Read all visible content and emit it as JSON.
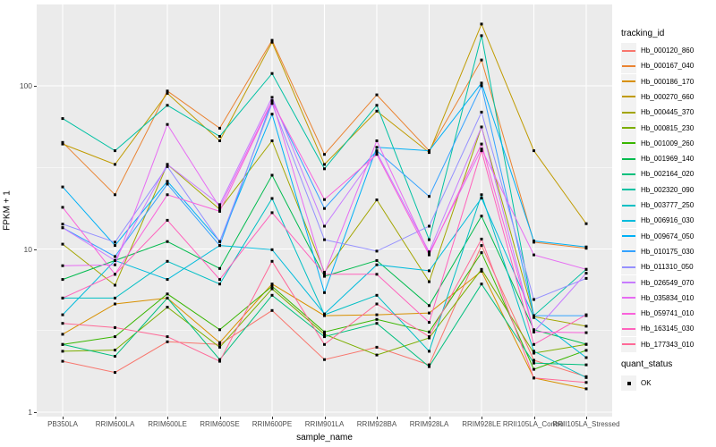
{
  "chart_data": {
    "type": "line",
    "title": "",
    "xlabel": "sample_name",
    "ylabel": "FPKM + 1",
    "y_scale": "log10",
    "ylim": [
      1,
      300
    ],
    "y_ticks": [
      1,
      10,
      100
    ],
    "grid": true,
    "panel_bg": "#EBEBEB",
    "grid_color": "#FFFFFF",
    "point_shape": "filled-square",
    "point_color": "#000000",
    "legend_position": "right",
    "legend_title": "tracking_id",
    "point_legend": {
      "title": "quant_status",
      "label": "OK"
    },
    "categories": [
      "PB350LA",
      "RRIM600LA",
      "RRIM600LE",
      "RRIM600SE",
      "RRIM600PE",
      "RRIM901LA",
      "RRIM928BA",
      "RRIM928LA",
      "RRIM928LE",
      "RRII105LA_Control",
      "RRII105LA_Stressed"
    ],
    "series": [
      {
        "name": "Hb_000120_860",
        "color": "#F8766D",
        "values": [
          2.05,
          1.75,
          2.7,
          2.6,
          4.2,
          2.1,
          2.5,
          1.95,
          10.5,
          2.08,
          1.65
        ]
      },
      {
        "name": "Hb_000167_040",
        "color": "#EA8331",
        "values": [
          45,
          21.5,
          93,
          55,
          190,
          38,
          88,
          40,
          144,
          11.0,
          10.1
        ]
      },
      {
        "name": "Hb_000186_170",
        "color": "#D89000",
        "values": [
          3.0,
          4.6,
          5.0,
          2.67,
          6.1,
          3.9,
          3.95,
          4.05,
          7.3,
          1.62,
          1.39
        ]
      },
      {
        "name": "Hb_000270_660",
        "color": "#C09B00",
        "values": [
          44,
          33,
          90,
          46,
          185,
          33,
          70,
          39,
          239,
          40,
          14.3
        ]
      },
      {
        "name": "Hb_000445_370",
        "color": "#A3A500",
        "values": [
          10.7,
          6.0,
          33,
          17.5,
          46,
          7.2,
          20,
          6.3,
          56,
          3.85,
          3.36
        ]
      },
      {
        "name": "Hb_000815_230",
        "color": "#7CAE00",
        "values": [
          2.36,
          2.4,
          4.4,
          2.5,
          5.7,
          3.0,
          2.24,
          2.85,
          7.5,
          2.3,
          2.6
        ]
      },
      {
        "name": "Hb_001009_260",
        "color": "#39B600",
        "values": [
          2.6,
          2.9,
          5.3,
          3.2,
          5.9,
          3.1,
          3.7,
          3.1,
          9.5,
          1.83,
          2.39
        ]
      },
      {
        "name": "Hb_001969_140",
        "color": "#00BB4E",
        "values": [
          6.5,
          8.5,
          11.1,
          7.6,
          28.3,
          6.8,
          8.5,
          4.5,
          15.9,
          3.2,
          2.61
        ]
      },
      {
        "name": "Hb_002164_020",
        "color": "#00BF7D",
        "values": [
          2.6,
          2.2,
          5.0,
          2.1,
          5.2,
          2.9,
          3.5,
          1.9,
          6.1,
          2.0,
          1.95
        ]
      },
      {
        "name": "Hb_002320_090",
        "color": "#00C1A3",
        "values": [
          63,
          40,
          76,
          49,
          119,
          31,
          76,
          11.4,
          203,
          3.9,
          7.5
        ]
      },
      {
        "name": "Hb_003777_250",
        "color": "#00BFC4",
        "values": [
          5.0,
          5.0,
          8.4,
          6.1,
          20.4,
          3.95,
          5.2,
          2.36,
          21.5,
          2.36,
          1.63
        ]
      },
      {
        "name": "Hb_006916_030",
        "color": "#00BBDC",
        "values": [
          3.95,
          8.5,
          6.5,
          10.5,
          9.9,
          4.0,
          8.0,
          7.35,
          20.5,
          3.8,
          2.16
        ]
      },
      {
        "name": "Hb_009674_050",
        "color": "#00B0F6",
        "values": [
          24,
          10.5,
          26,
          11.1,
          67,
          5.4,
          42,
          40,
          104,
          11.2,
          10.3
        ]
      },
      {
        "name": "Hb_010175_030",
        "color": "#35A2FF",
        "values": [
          13.5,
          9.0,
          25,
          10.5,
          81,
          17.7,
          40,
          21,
          100,
          3.9,
          3.9
        ]
      },
      {
        "name": "Hb_011310_050",
        "color": "#9590FF",
        "values": [
          14.2,
          11.0,
          32,
          11.1,
          78,
          11.4,
          9.7,
          13.8,
          69,
          4.9,
          6.6
        ]
      },
      {
        "name": "Hb_026549_070",
        "color": "#C77CFF",
        "values": [
          13.5,
          8.5,
          33,
          18.7,
          85,
          13.8,
          39,
          9.6,
          56,
          3.1,
          7.1
        ]
      },
      {
        "name": "Hb_035834_010",
        "color": "#E76BF3",
        "values": [
          7.9,
          8.0,
          58,
          18,
          81,
          7.0,
          46,
          9.4,
          41,
          9.2,
          7.5
        ]
      },
      {
        "name": "Hb_059741_010",
        "color": "#FA62DB",
        "values": [
          18,
          7.0,
          21.5,
          17,
          80,
          20.1,
          38,
          9.2,
          44,
          3.1,
          3.07
        ]
      },
      {
        "name": "Hb_163145_030",
        "color": "#FF62BC",
        "values": [
          5.0,
          7.0,
          15,
          6.5,
          16.7,
          7.0,
          7.0,
          3.55,
          40,
          2.6,
          3.95
        ]
      },
      {
        "name": "Hb_177343_010",
        "color": "#FF6A98",
        "values": [
          3.5,
          3.3,
          2.9,
          2.05,
          8.4,
          2.6,
          4.6,
          2.9,
          11.5,
          1.62,
          1.52
        ]
      }
    ]
  }
}
